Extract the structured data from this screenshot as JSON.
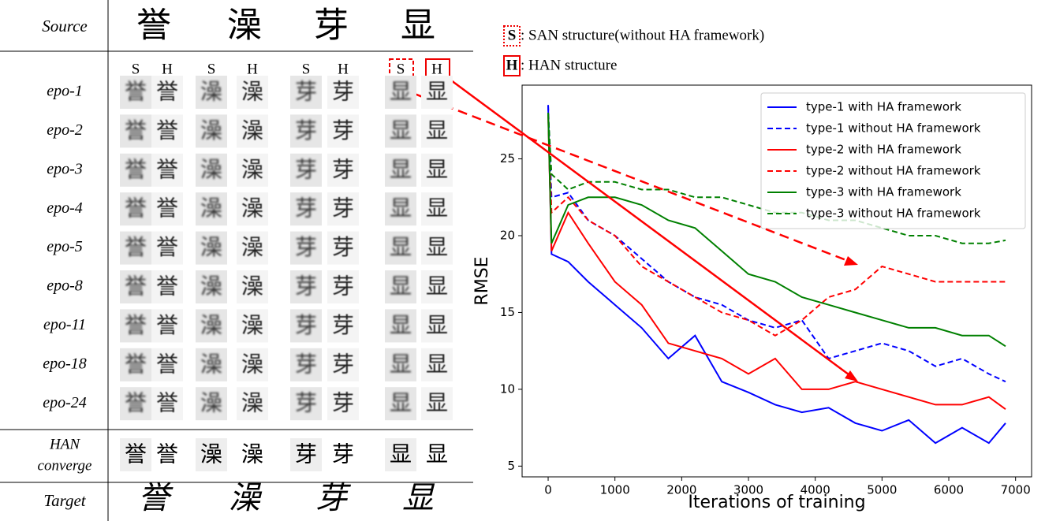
{
  "table": {
    "source_label": "Source",
    "characters": [
      "誉",
      "澡",
      "芽",
      "显"
    ],
    "column_labels": [
      "S",
      "H"
    ],
    "epochs": [
      "epo-1",
      "epo-2",
      "epo-3",
      "epo-4",
      "epo-5",
      "epo-8",
      "epo-11",
      "epo-18",
      "epo-24"
    ],
    "converge_label": [
      "HAN",
      "converge"
    ],
    "target_label": "Target"
  },
  "annotations": {
    "san_key": "S",
    "san_text": ": SAN structure(without HA framework)",
    "han_key": "H",
    "han_text": ": HAN structure"
  },
  "chart_data": {
    "type": "line",
    "xlabel": "Iterations of training",
    "ylabel": "RMSE",
    "x": [
      0,
      50,
      300,
      600,
      1000,
      1400,
      1800,
      2200,
      2600,
      3000,
      3400,
      3800,
      4200,
      4600,
      5000,
      5400,
      5800,
      6200,
      6600,
      6850
    ],
    "series": [
      {
        "name": "type-1 with HA framework",
        "color": "#0000ff",
        "dash": false,
        "values": [
          28.5,
          18.8,
          18.3,
          17,
          15.5,
          14,
          12,
          13.5,
          10.5,
          9.8,
          9,
          8.5,
          8.8,
          7.8,
          7.3,
          8,
          6.5,
          7.5,
          6.5,
          7.8
        ]
      },
      {
        "name": "type-1 without HA framework",
        "color": "#0000ff",
        "dash": true,
        "values": [
          28.5,
          22.5,
          22.8,
          21,
          20,
          18.5,
          17,
          16,
          15.5,
          14.5,
          14,
          14.5,
          12,
          12.5,
          13,
          12.5,
          11.5,
          12,
          11,
          10.5
        ]
      },
      {
        "name": "type-2 with HA framework",
        "color": "#ff0000",
        "dash": false,
        "values": [
          28,
          19,
          21.5,
          19.5,
          17,
          15.5,
          13,
          12.5,
          12,
          11,
          12,
          10,
          10,
          10.5,
          10,
          9.5,
          9,
          9,
          9.5,
          8.7
        ]
      },
      {
        "name": "type-2 without HA framework",
        "color": "#ff0000",
        "dash": true,
        "values": [
          28,
          21.5,
          22.5,
          21,
          20,
          18,
          17,
          16,
          15,
          14.5,
          13.5,
          14.5,
          16,
          16.5,
          18,
          17.5,
          17,
          17,
          17,
          17
        ]
      },
      {
        "name": "type-3 with HA framework",
        "color": "#008000",
        "dash": false,
        "values": [
          28,
          19.5,
          22,
          22.5,
          22.5,
          22,
          21,
          20.5,
          19,
          17.5,
          17,
          16,
          15.5,
          15,
          14.5,
          14,
          14,
          13.5,
          13.5,
          12.8
        ]
      },
      {
        "name": "type-3 without HA framework",
        "color": "#008000",
        "dash": true,
        "values": [
          28,
          24,
          23,
          23.5,
          23.5,
          23,
          23,
          22.5,
          22.5,
          22,
          21.5,
          21.5,
          21,
          21,
          20.5,
          20,
          20,
          19.5,
          19.5,
          19.7
        ]
      }
    ],
    "xlim": [
      -390,
      7240
    ],
    "ylim": [
      4.3,
      29.8
    ],
    "xticks": [
      0,
      1000,
      2000,
      3000,
      4000,
      5000,
      6000,
      7000
    ],
    "yticks": [
      5,
      10,
      15,
      20,
      25
    ],
    "legend": "upper right"
  }
}
